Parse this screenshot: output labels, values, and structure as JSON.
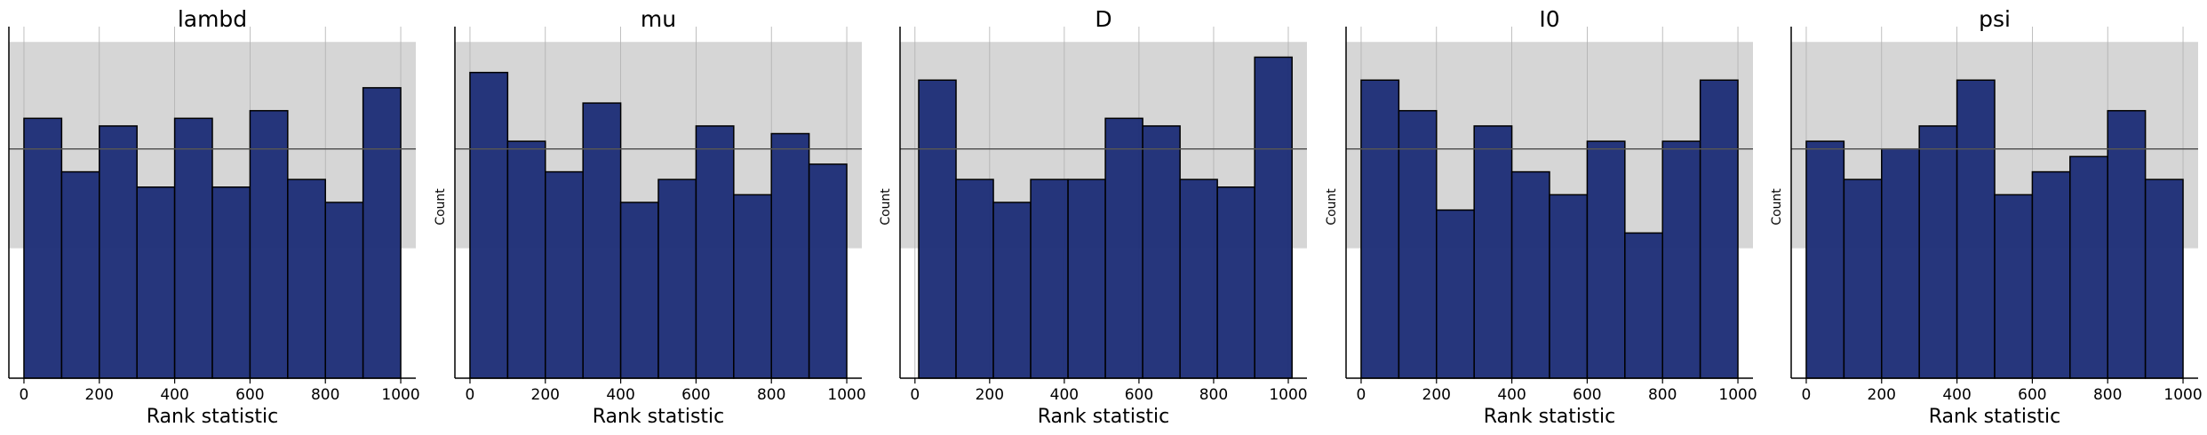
{
  "chart_data": [
    {
      "type": "bar",
      "title": "lambd",
      "xlabel": "Rank statistic",
      "ylabel": "",
      "bin_edges": [
        0,
        100,
        200,
        300,
        400,
        500,
        600,
        700,
        800,
        900,
        1000
      ],
      "values": [
        34,
        27,
        33,
        25,
        34,
        25,
        35,
        26,
        23,
        38
      ],
      "band": [
        17,
        44
      ],
      "ref_line": 30,
      "xlim": [
        -40,
        1040
      ],
      "ylim": [
        0,
        46
      ],
      "xticks": [
        "0",
        "200",
        "400",
        "600",
        "800",
        "1000"
      ],
      "grid": true,
      "bar_color": "#1f3078"
    },
    {
      "type": "bar",
      "title": "mu",
      "xlabel": "Rank statistic",
      "ylabel": "Count",
      "bin_edges": [
        0,
        100,
        200,
        300,
        400,
        500,
        600,
        700,
        800,
        900,
        1000
      ],
      "values": [
        40,
        31,
        27,
        36,
        23,
        26,
        33,
        24,
        32,
        28
      ],
      "band": [
        17,
        44
      ],
      "ref_line": 30,
      "xlim": [
        -40,
        1040
      ],
      "ylim": [
        0,
        46
      ],
      "xticks": [
        "0",
        "200",
        "400",
        "600",
        "800",
        "1000"
      ],
      "grid": true,
      "bar_color": "#1f3078"
    },
    {
      "type": "bar",
      "title": "D",
      "xlabel": "Rank statistic",
      "ylabel": "Count",
      "bin_edges": [
        10,
        110,
        210,
        310,
        410,
        510,
        610,
        710,
        810,
        910,
        1010
      ],
      "values": [
        39,
        26,
        23,
        26,
        26,
        34,
        33,
        26,
        25,
        42
      ],
      "band": [
        17,
        44
      ],
      "ref_line": 30,
      "xlim": [
        -40,
        1050
      ],
      "ylim": [
        0,
        46
      ],
      "xticks": [
        "0",
        "200",
        "400",
        "600",
        "800",
        "1000"
      ],
      "grid": true,
      "bar_color": "#1f3078"
    },
    {
      "type": "bar",
      "title": "I0",
      "xlabel": "Rank statistic",
      "ylabel": "Count",
      "bin_edges": [
        0,
        100,
        200,
        300,
        400,
        500,
        600,
        700,
        800,
        900,
        1000
      ],
      "values": [
        39,
        35,
        22,
        33,
        27,
        24,
        31,
        19,
        31,
        39
      ],
      "band": [
        17,
        44
      ],
      "ref_line": 30,
      "xlim": [
        -40,
        1040
      ],
      "ylim": [
        0,
        46
      ],
      "xticks": [
        "0",
        "200",
        "400",
        "600",
        "800",
        "1000"
      ],
      "grid": true,
      "bar_color": "#1f3078"
    },
    {
      "type": "bar",
      "title": "psi",
      "xlabel": "Rank statistic",
      "ylabel": "Count",
      "bin_edges": [
        0,
        100,
        200,
        300,
        400,
        500,
        600,
        700,
        800,
        900,
        1000
      ],
      "values": [
        31,
        26,
        30,
        33,
        39,
        24,
        27,
        29,
        35,
        26
      ],
      "band": [
        17,
        44
      ],
      "ref_line": 30,
      "xlim": [
        -40,
        1040
      ],
      "ylim": [
        0,
        46
      ],
      "xticks": [
        "0",
        "200",
        "400",
        "600",
        "800",
        "1000"
      ],
      "grid": true,
      "bar_color": "#1f3078"
    }
  ]
}
